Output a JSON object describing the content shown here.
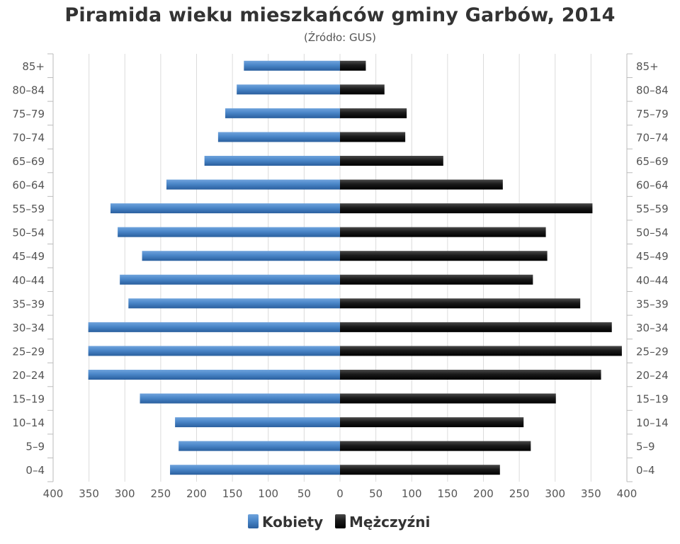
{
  "chart_data": {
    "type": "bar",
    "orientation": "horizontal",
    "layout": "population-pyramid",
    "title": "Piramida wieku mieszkańców gminy Garbów, 2014",
    "subtitle": "(Źródło: GUS)",
    "categories": [
      "0–4",
      "5–9",
      "10–14",
      "15–19",
      "20–24",
      "25–29",
      "30–34",
      "35–39",
      "40–44",
      "45–49",
      "50–54",
      "55–59",
      "60–64",
      "65–69",
      "70–74",
      "75–79",
      "80–84",
      "85+"
    ],
    "series": [
      {
        "name": "Kobiety",
        "side": "left",
        "color": "#3e7bc4",
        "values": [
          237,
          225,
          230,
          279,
          351,
          351,
          351,
          295,
          307,
          276,
          310,
          320,
          242,
          189,
          170,
          160,
          144,
          134
        ]
      },
      {
        "name": "Mężczyźni",
        "side": "right",
        "color": "#111111",
        "values": [
          223,
          266,
          256,
          301,
          364,
          393,
          379,
          335,
          269,
          289,
          287,
          352,
          227,
          144,
          91,
          93,
          62,
          36
        ]
      }
    ],
    "xlim": [
      -400,
      400
    ],
    "xticks": [
      "400",
      "350",
      "300",
      "250",
      "200",
      "150",
      "100",
      "50",
      "0",
      "50",
      "100",
      "150",
      "200",
      "250",
      "300",
      "350",
      "400"
    ],
    "grid": true,
    "legend_position": "bottom-center"
  }
}
